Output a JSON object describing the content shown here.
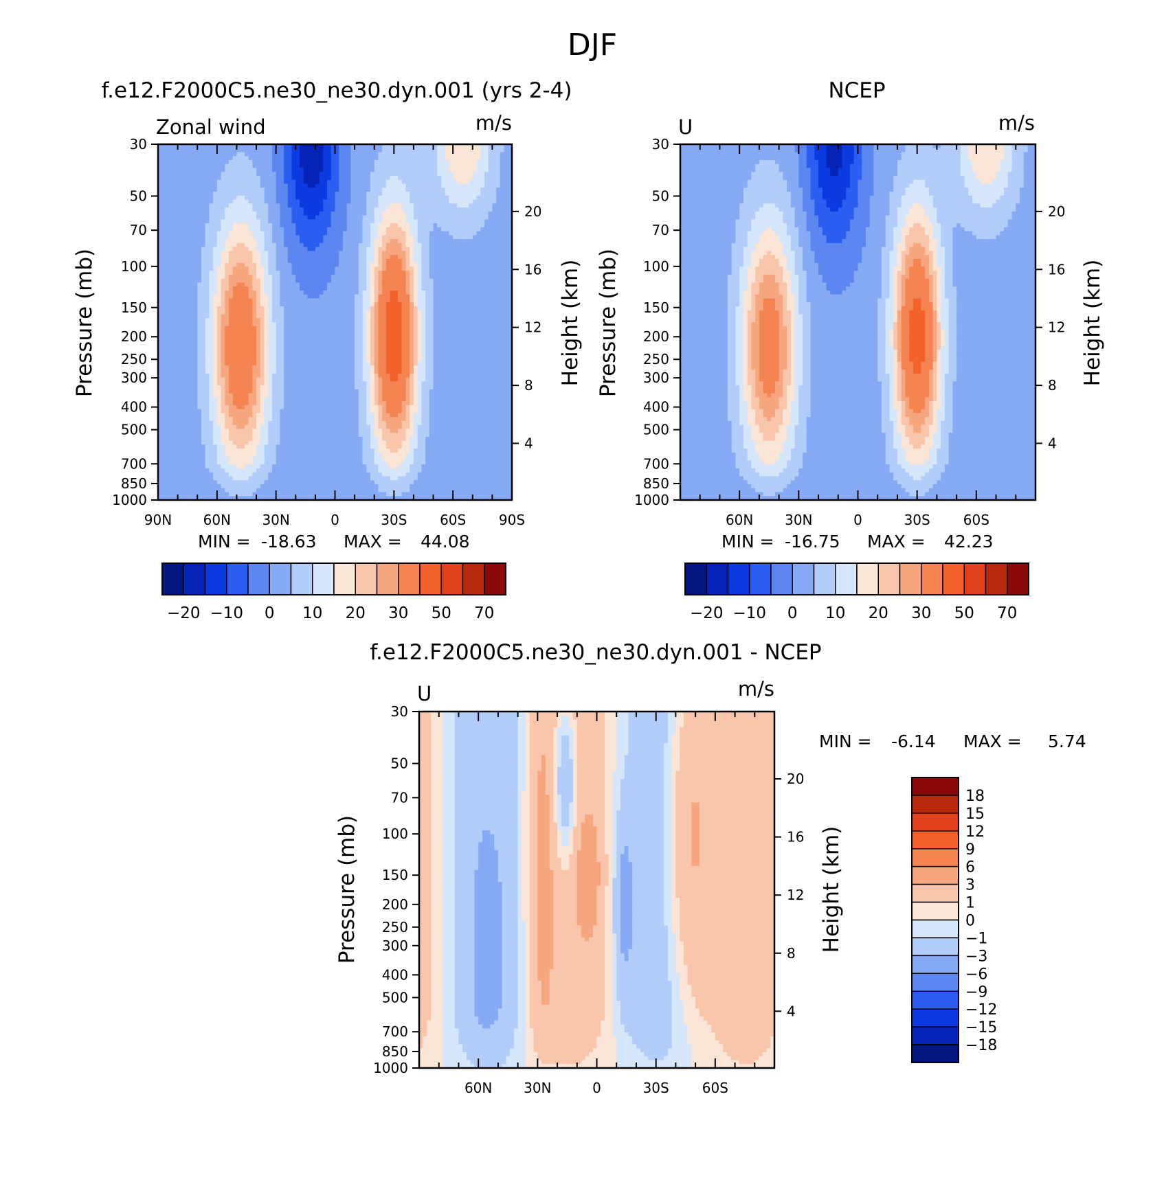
{
  "page": {
    "title": "DJF"
  },
  "colors": {
    "pos": [
      "#fbe5d6",
      "#f9c6ac",
      "#f6a77f",
      "#f48553",
      "#f3622a",
      "#e0411a",
      "#b82a0d",
      "#8a0a0a"
    ],
    "neg": [
      "#d6e7fb",
      "#b3cdfa",
      "#87aaf5",
      "#5c87f0",
      "#2b5ef0",
      "#0a3ae0",
      "#0424b8",
      "#021680"
    ],
    "diff_pos": [
      "#fbe5d6",
      "#f9c6ac",
      "#f6a77f",
      "#f48553",
      "#f3622a",
      "#e0411a",
      "#b82a0d",
      "#8a0a0a"
    ],
    "diff_neg": [
      "#d6e7fb",
      "#b3cdfa",
      "#87aaf5",
      "#5c87f0",
      "#2b5ef0",
      "#0a3ae0",
      "#0424b8",
      "#021680"
    ]
  },
  "chart_data": [
    {
      "type": "heatmap",
      "id": "model",
      "title": "f.e12.F2000C5.ne30_ne30.dyn.001 (yrs 2-4)",
      "left_label": "Zonal wind",
      "units": "m/s",
      "ylabel": "Pressure (mb)",
      "ylabel_right": "Height (km)",
      "y_ticks": [
        "30",
        "50",
        "70",
        "100",
        "150",
        "200",
        "250",
        "300",
        "400",
        "500",
        "700",
        "850",
        "1000"
      ],
      "y_ticks_right": [
        "20",
        "16",
        "12",
        "8",
        "4"
      ],
      "x_ticks": [
        "90N",
        "60N",
        "30N",
        "0",
        "30S",
        "60S",
        "90S"
      ],
      "min_label": "MIN =",
      "min": "-18.63",
      "max_label": "MAX =",
      "max": "44.08",
      "colorbar_labels": [
        "-20",
        "-10",
        "0",
        "10",
        "20",
        "30",
        "50",
        "70"
      ],
      "jets": [
        {
          "lat": -30,
          "p": 200,
          "peak": 44.08
        },
        {
          "lat": 48,
          "p": 220,
          "peak": 37
        }
      ],
      "easterly": {
        "lat": 12,
        "p": 30,
        "peak": -18.63
      }
    },
    {
      "type": "heatmap",
      "id": "obs",
      "title": "NCEP",
      "left_label": "U",
      "units": "m/s",
      "ylabel": "Pressure (mb)",
      "ylabel_right": "Height (km)",
      "y_ticks": [
        "30",
        "50",
        "70",
        "100",
        "150",
        "200",
        "250",
        "300",
        "400",
        "500",
        "700",
        "850",
        "1000"
      ],
      "y_ticks_right": [
        "20",
        "16",
        "12",
        "8",
        "4"
      ],
      "x_ticks": [
        "60N",
        "30N",
        "0",
        "30S",
        "60S"
      ],
      "min_label": "MIN =",
      "min": "-16.75",
      "max_label": "MAX =",
      "max": "42.23",
      "colorbar_labels": [
        "-20",
        "-10",
        "0",
        "10",
        "20",
        "30",
        "50",
        "70"
      ],
      "jets": [
        {
          "lat": -30,
          "p": 200,
          "peak": 42.23
        },
        {
          "lat": 45,
          "p": 220,
          "peak": 33
        }
      ],
      "easterly": {
        "lat": 12,
        "p": 30,
        "peak": -16.75
      }
    },
    {
      "type": "heatmap",
      "id": "diff",
      "title": "f.e12.F2000C5.ne30_ne30.dyn.001 - NCEP",
      "left_label": "U",
      "units": "m/s",
      "ylabel": "Pressure (mb)",
      "ylabel_right": "Height (km)",
      "y_ticks": [
        "30",
        "50",
        "70",
        "100",
        "150",
        "200",
        "250",
        "300",
        "400",
        "500",
        "700",
        "850",
        "1000"
      ],
      "y_ticks_right": [
        "20",
        "16",
        "12",
        "8",
        "4"
      ],
      "x_ticks": [
        "60N",
        "30N",
        "0",
        "30S",
        "60S"
      ],
      "min_label": "MIN =",
      "min": "-6.14",
      "max_label": "MAX =",
      "max": "5.74",
      "colorbar_labels": [
        "18",
        "15",
        "12",
        "9",
        "6",
        "3",
        "1",
        "0",
        "-1",
        "-3",
        "-6",
        "-9",
        "-12",
        "-15",
        "-18"
      ]
    }
  ]
}
